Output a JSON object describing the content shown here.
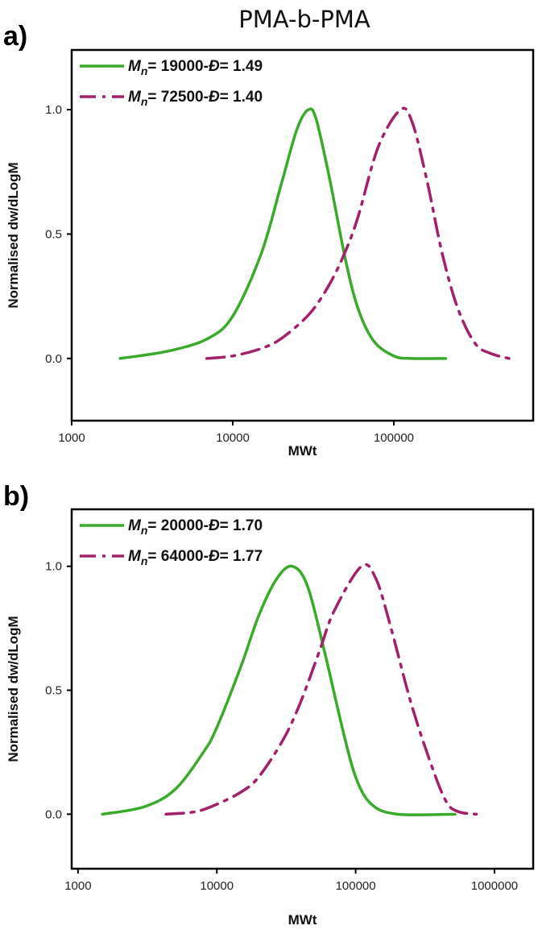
{
  "title": "PMA-b-PMA",
  "colors": {
    "green": "#3aaa2a",
    "purple": "#a3206b",
    "axis": "#000000"
  },
  "chart_data": [
    {
      "type": "line",
      "panel_label": "a)",
      "xlabel": "MWt",
      "ylabel": "Normalised dw/dLogM",
      "x_scale": "log",
      "xlim": [
        1000,
        733000
      ],
      "ylim": [
        -0.25,
        1.24
      ],
      "xticks": [
        1000,
        10000,
        100000
      ],
      "xtick_labels": [
        "1000",
        "10000",
        "100000"
      ],
      "yticks": [
        0.0,
        0.5,
        1.0
      ],
      "ytick_labels": [
        "0.0",
        "0.5",
        "1.0"
      ],
      "grid": false,
      "legend_placement": "top-left",
      "series": [
        {
          "name": "Mn= 19000-Đ= 1.49",
          "mn": "19000",
          "d": "1.49",
          "style": "solid",
          "color": "#3aaa2a",
          "x": [
            2000,
            4000,
            7000,
            10000,
            15000,
            20000,
            25000,
            29500,
            33000,
            40000,
            50000,
            60000,
            75000,
            100000,
            130000,
            210000
          ],
          "y": [
            0,
            0.03,
            0.08,
            0.17,
            0.42,
            0.7,
            0.92,
            1.0,
            0.96,
            0.72,
            0.4,
            0.2,
            0.07,
            0.01,
            0,
            0
          ]
        },
        {
          "name": "Mn= 72500-Đ= 1.40",
          "mn": "72500",
          "d": "1.40",
          "style": "dashdot",
          "color": "#a3206b",
          "x": [
            6900,
            10000,
            15000,
            20000,
            30000,
            40000,
            50000,
            60000,
            80000,
            110000,
            130000,
            160000,
            200000,
            250000,
            320000,
            400000,
            520000
          ],
          "y": [
            0,
            0.01,
            0.04,
            0.08,
            0.18,
            0.3,
            0.43,
            0.57,
            0.85,
            1.0,
            0.95,
            0.72,
            0.42,
            0.2,
            0.06,
            0.02,
            0
          ]
        }
      ]
    },
    {
      "type": "line",
      "panel_label": "b)",
      "xlabel": "MWt",
      "ylabel": "Normalised dw/dLogM",
      "x_scale": "log",
      "xlim": [
        900,
        1900000
      ],
      "ylim": [
        -0.22,
        1.23
      ],
      "xticks": [
        1000,
        10000,
        100000,
        1000000
      ],
      "xtick_labels": [
        "1000",
        "10000",
        "100000",
        "1000000"
      ],
      "yticks": [
        0.0,
        0.5,
        1.0
      ],
      "ytick_labels": [
        "0.0",
        "0.5",
        "1.0"
      ],
      "grid": false,
      "legend_placement": "top-left",
      "series": [
        {
          "name": "Mn= 20000-Đ= 1.70",
          "mn": "20000",
          "d": "1.70",
          "style": "solid",
          "color": "#3aaa2a",
          "x": [
            1500,
            3000,
            5000,
            8000,
            10000,
            15000,
            20000,
            27000,
            35000,
            45000,
            60000,
            80000,
            100000,
            130000,
            200000,
            520000
          ],
          "y": [
            0,
            0.03,
            0.1,
            0.25,
            0.35,
            0.6,
            0.8,
            0.95,
            1.0,
            0.92,
            0.65,
            0.35,
            0.15,
            0.04,
            0,
            0
          ]
        },
        {
          "name": "Mn= 64000-Đ= 1.77",
          "mn": "64000",
          "d": "1.77",
          "style": "dashdot",
          "color": "#a3206b",
          "x": [
            4300,
            7000,
            10000,
            15000,
            20000,
            30000,
            40000,
            55000,
            70000,
            110000,
            140000,
            180000,
            250000,
            350000,
            450000,
            550000,
            740000
          ],
          "y": [
            0,
            0.01,
            0.04,
            0.09,
            0.15,
            0.3,
            0.45,
            0.66,
            0.82,
            1.0,
            0.95,
            0.75,
            0.45,
            0.2,
            0.05,
            0.01,
            0
          ]
        }
      ]
    }
  ]
}
